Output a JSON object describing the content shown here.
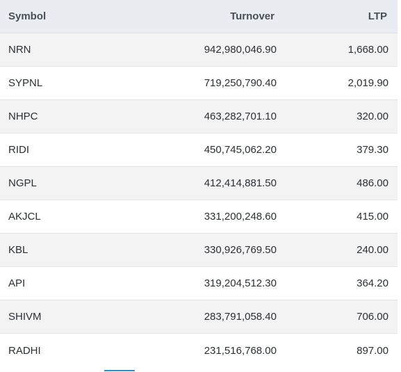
{
  "table": {
    "headers": {
      "symbol": "Symbol",
      "turnover": "Turnover",
      "ltp": "LTP"
    },
    "rows": [
      {
        "symbol": "NRN",
        "turnover": "942,980,046.90",
        "ltp": "1,668.00"
      },
      {
        "symbol": "SYPNL",
        "turnover": "719,250,790.40",
        "ltp": "2,019.90"
      },
      {
        "symbol": "NHPC",
        "turnover": "463,282,701.10",
        "ltp": "320.00"
      },
      {
        "symbol": "RIDI",
        "turnover": "450,745,062.20",
        "ltp": "379.30"
      },
      {
        "symbol": "NGPL",
        "turnover": "412,414,881.50",
        "ltp": "486.00"
      },
      {
        "symbol": "AKJCL",
        "turnover": "331,200,248.60",
        "ltp": "415.00"
      },
      {
        "symbol": "KBL",
        "turnover": "330,926,769.50",
        "ltp": "240.00"
      },
      {
        "symbol": "API",
        "turnover": "319,204,512.30",
        "ltp": "364.20"
      },
      {
        "symbol": "SHIVM",
        "turnover": "283,791,058.40",
        "ltp": "706.00"
      },
      {
        "symbol": "RADHI",
        "turnover": "231,516,768.00",
        "ltp": "897.00"
      }
    ]
  },
  "colors": {
    "header_bg": "#e9ecf0",
    "row_odd_bg": "#f3f3f3",
    "row_even_bg": "#ffffff",
    "accent": "#2f8fd3"
  }
}
